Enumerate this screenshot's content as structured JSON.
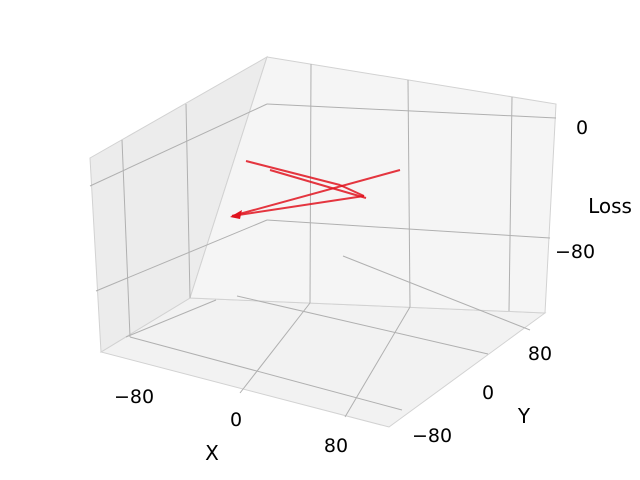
{
  "chart_data": {
    "type": "scatter",
    "projection": "3d",
    "title": "",
    "xlabel": "X",
    "ylabel": "Y",
    "zlabel": "Loss",
    "x_ticks": [
      {
        "value": -80,
        "label": "−80"
      },
      {
        "value": 0,
        "label": "0"
      },
      {
        "value": 80,
        "label": "80"
      }
    ],
    "y_ticks": [
      {
        "value": -80,
        "label": "−80"
      },
      {
        "value": 0,
        "label": "0"
      },
      {
        "value": 80,
        "label": "80"
      }
    ],
    "z_ticks": [
      {
        "value": 0,
        "label": "0"
      },
      {
        "value": -80,
        "label": "−80"
      }
    ],
    "xlim": [
      -120,
      120
    ],
    "ylim": [
      -120,
      120
    ],
    "zlim": [
      -130,
      20
    ],
    "grid": true,
    "series": [
      {
        "type": "scatter-surface",
        "color": "#5fa2d4",
        "opacity": 0.1,
        "description_points": "dense point cloud forming a saddle-like loss surface"
      },
      {
        "type": "path",
        "color": "#e0131e",
        "points": [
          {
            "x": 10,
            "y": 110,
            "z": -8
          },
          {
            "x": 60,
            "y": 30,
            "z": -20
          },
          {
            "x": -60,
            "y": -30,
            "z": -60
          },
          {
            "x": 30,
            "y": 60,
            "z": -45
          },
          {
            "x": 70,
            "y": 70,
            "z": -30
          },
          {
            "x": -40,
            "y": -60,
            "z": -70
          }
        ]
      }
    ],
    "colors": {
      "pane": "#f2f2f2",
      "pane_side": "#ececec",
      "points": "#5fa2d4",
      "path": "#e0131e"
    }
  }
}
